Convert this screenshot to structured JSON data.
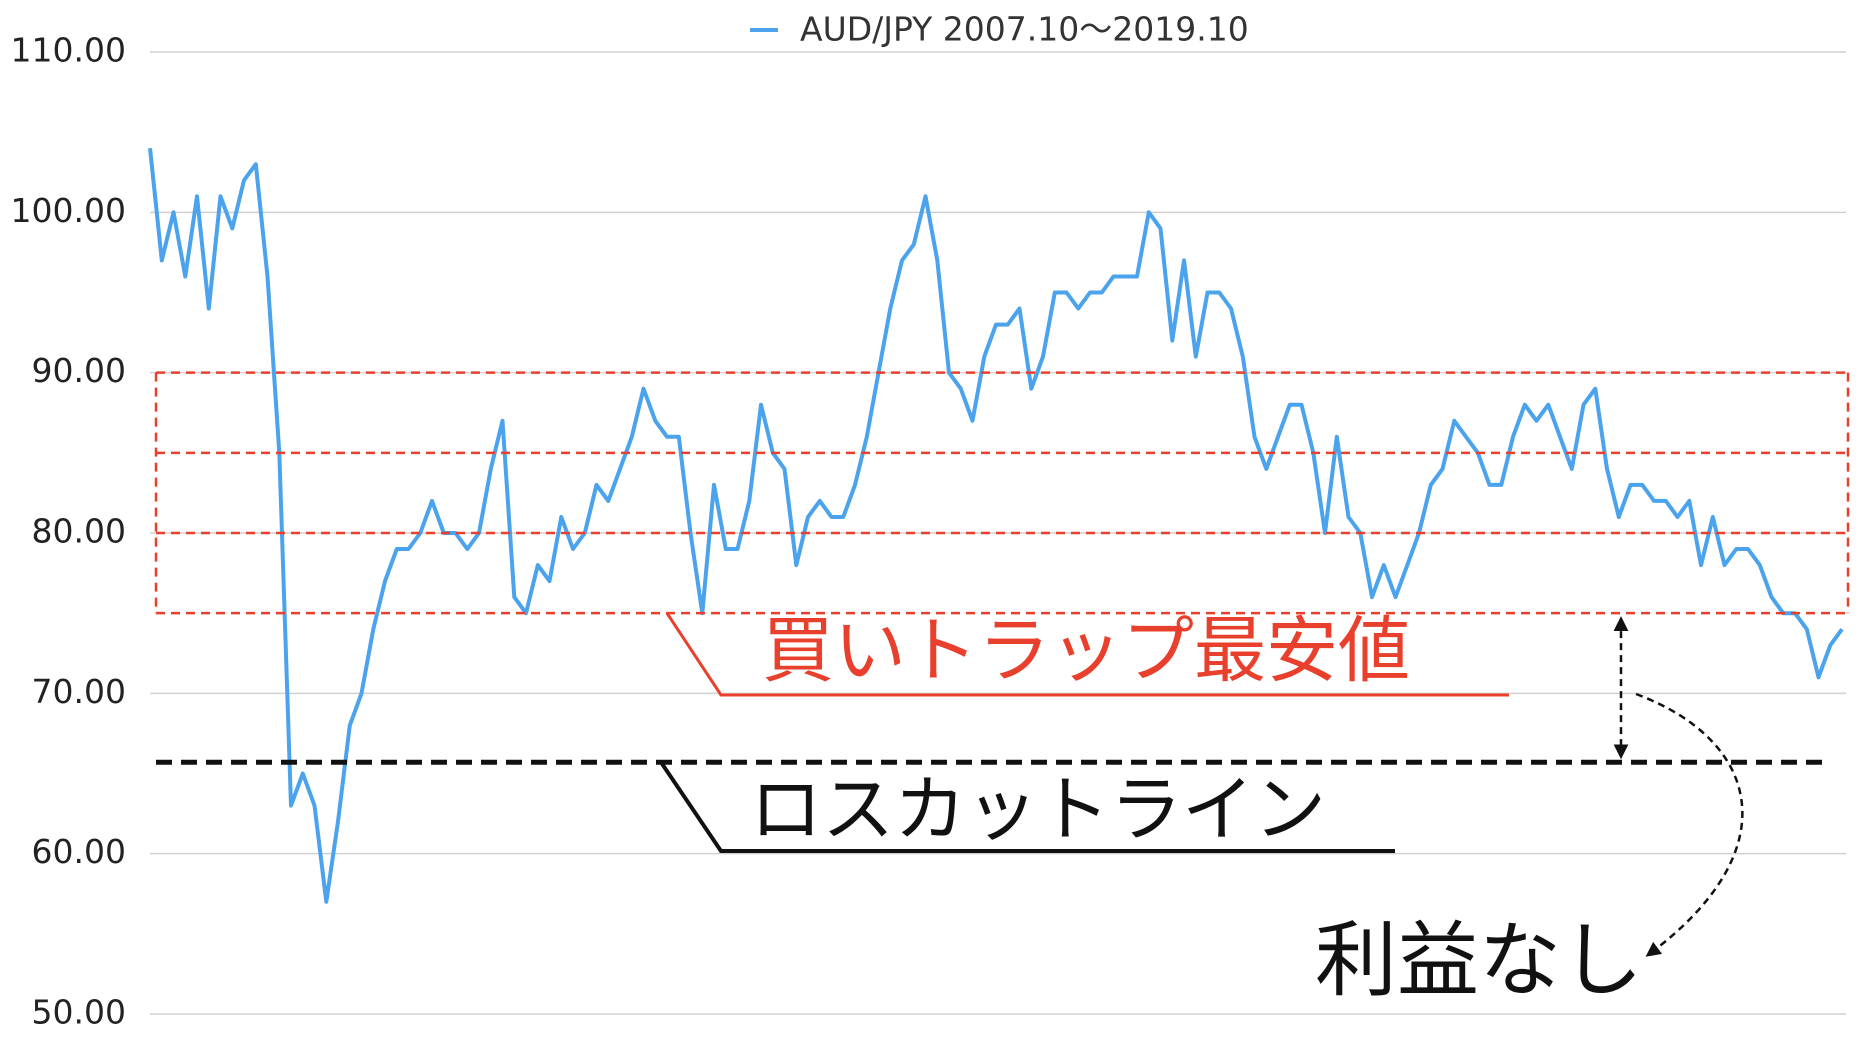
{
  "chart_data": {
    "type": "line",
    "series": [
      {
        "name": "AUD/JPY 2007.10〜2019.10",
        "color": "#4aa3ec",
        "values": [
          104,
          97,
          100,
          96,
          101,
          94,
          101,
          99,
          102,
          103,
          96,
          85,
          63,
          65,
          63,
          57,
          62,
          68,
          70,
          74,
          77,
          79,
          79,
          80,
          82,
          80,
          80,
          79,
          80,
          84,
          87,
          76,
          75,
          78,
          77,
          81,
          79,
          80,
          83,
          82,
          84,
          86,
          89,
          87,
          86,
          86,
          80,
          75,
          83,
          79,
          79,
          82,
          88,
          85,
          84,
          78,
          81,
          82,
          81,
          81,
          83,
          86,
          90,
          94,
          97,
          98,
          101,
          97,
          90,
          89,
          87,
          91,
          93,
          93,
          94,
          89,
          91,
          95,
          95,
          94,
          95,
          95,
          96,
          96,
          96,
          100,
          99,
          92,
          97,
          91,
          95,
          95,
          94,
          91,
          86,
          84,
          86,
          88,
          88,
          85,
          80,
          86,
          81,
          80,
          76,
          78,
          76,
          78,
          80,
          83,
          84,
          87,
          86,
          85,
          83,
          83,
          86,
          88,
          87,
          88,
          86,
          84,
          88,
          89,
          84,
          81,
          83,
          83,
          82,
          82,
          81,
          82,
          78,
          81,
          78,
          79,
          79,
          78,
          76,
          75,
          75,
          74,
          71,
          73,
          74
        ]
      }
    ],
    "ylim": [
      50,
      110
    ],
    "yticks": [
      {
        "value": 50,
        "label": "50.00"
      },
      {
        "value": 60,
        "label": "60.00"
      },
      {
        "value": 70,
        "label": "70.00"
      },
      {
        "value": 80,
        "label": "80.00"
      },
      {
        "value": 90,
        "label": "90.00"
      },
      {
        "value": 100,
        "label": "100.00"
      },
      {
        "value": 110,
        "label": "110.00"
      }
    ],
    "grid": true,
    "trap_lines": [
      90,
      85,
      80,
      75
    ],
    "loss_cut": 65.7,
    "annotations": [
      {
        "text": "買いトラップ最安値",
        "value": 75
      },
      {
        "text": "ロスカットライン",
        "value": 65.7
      },
      {
        "text": "利益なし"
      }
    ]
  }
}
